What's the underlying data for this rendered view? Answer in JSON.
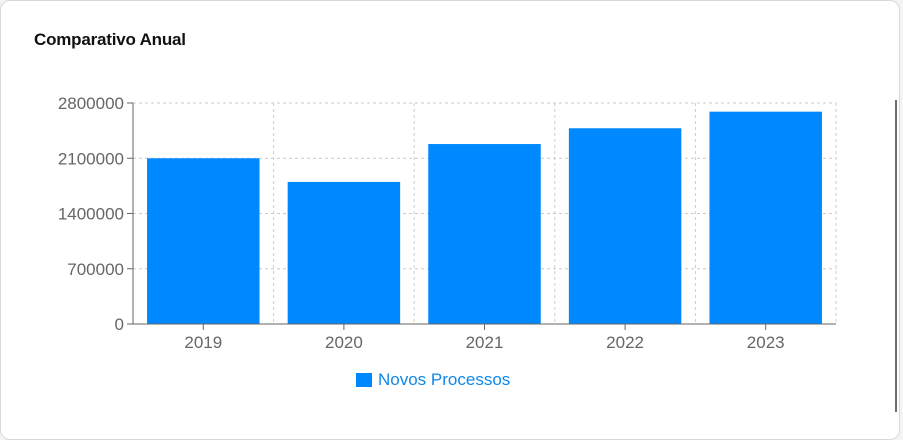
{
  "card": {
    "title": "Comparativo Anual"
  },
  "chart_data": {
    "type": "bar",
    "categories": [
      "2019",
      "2020",
      "2021",
      "2022",
      "2023"
    ],
    "series": [
      {
        "name": "Novos Processos",
        "values": [
          2100000,
          1800000,
          2280000,
          2480000,
          2690000
        ]
      }
    ],
    "ylim": [
      0,
      2800000
    ],
    "yticks": [
      0,
      700000,
      1400000,
      2100000,
      2800000
    ],
    "grid": true,
    "legend": "bottom-center",
    "colors": {
      "bar": "#0088fe",
      "grid": "#cccccc",
      "axis": "#666666"
    }
  }
}
